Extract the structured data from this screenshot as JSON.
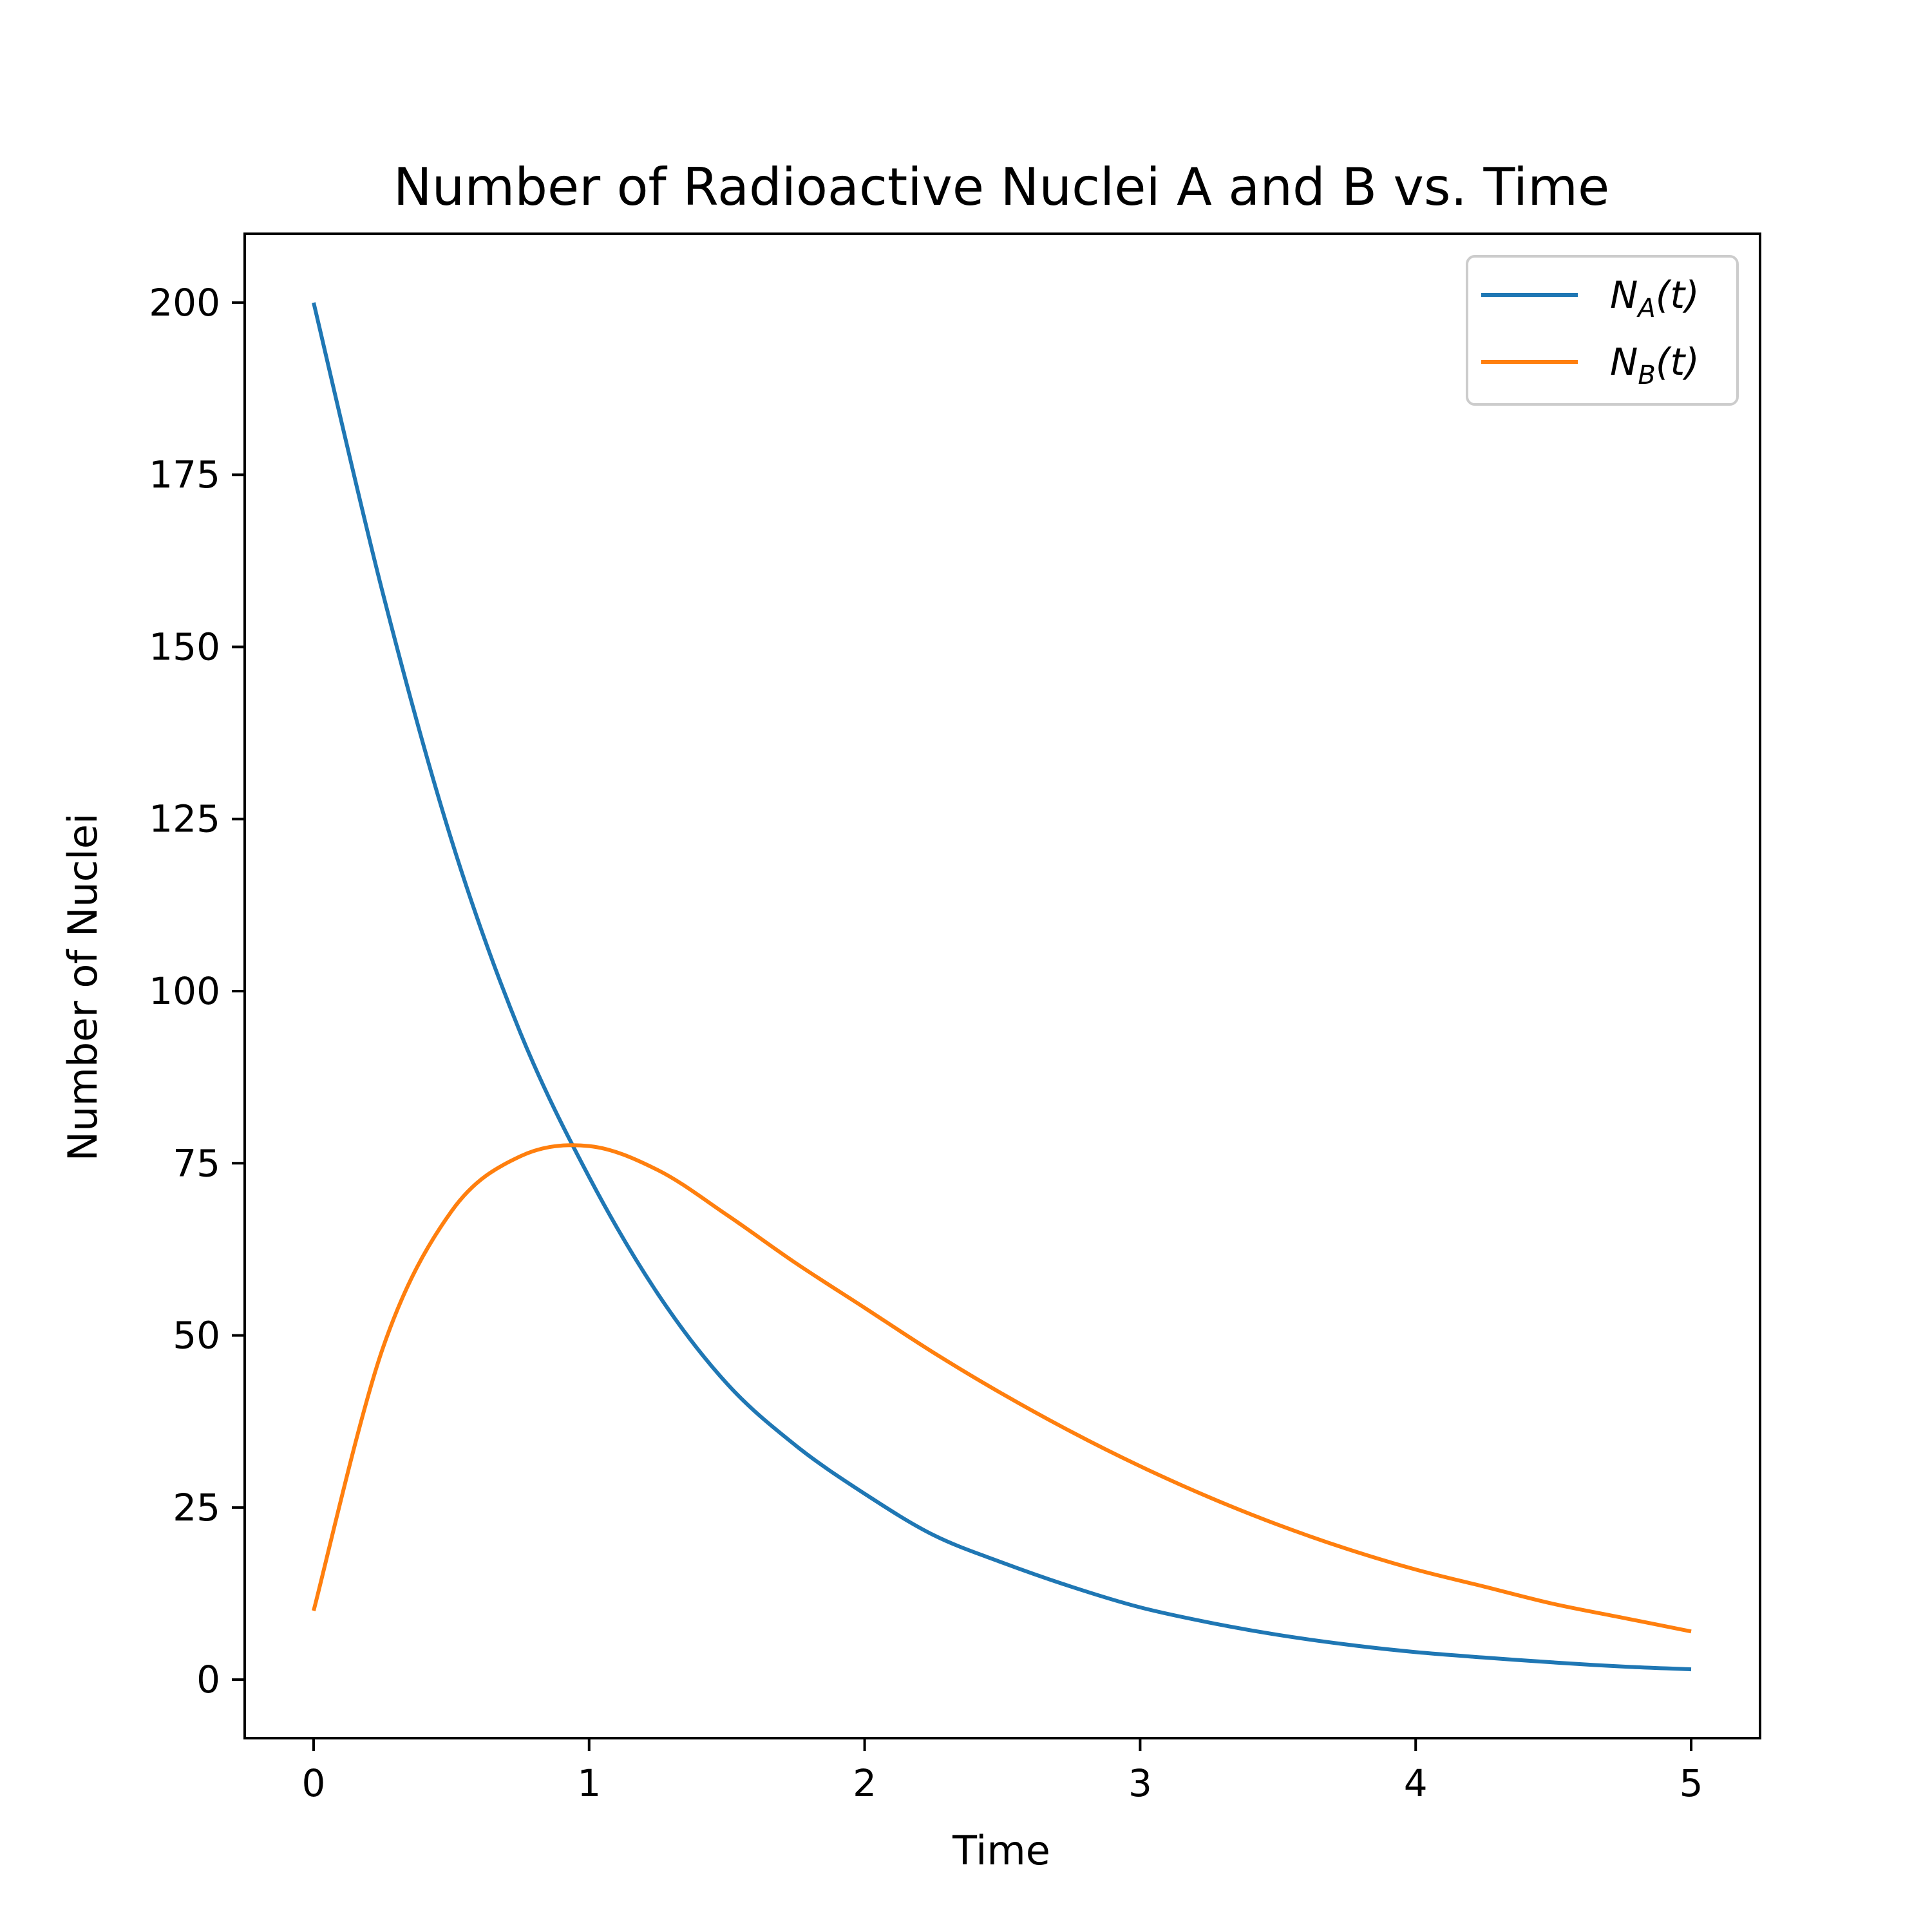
{
  "chart_data": {
    "type": "line",
    "title": "Number of Radioactive Nuclei A and B vs. Time",
    "xlabel": "Time",
    "ylabel": "Number of Nuclei",
    "xlim": [
      -0.25,
      5.25
    ],
    "ylim": [
      -8.5,
      210
    ],
    "xticks": [
      0,
      1,
      2,
      3,
      4,
      5
    ],
    "yticks": [
      0,
      25,
      50,
      75,
      100,
      125,
      150,
      175,
      200
    ],
    "grid": false,
    "legend_position": "top-right",
    "series": [
      {
        "name": "N_A(t)",
        "legend_main": "N",
        "legend_sub": "A",
        "legend_tail": "(t)",
        "color": "#1f77b4",
        "x": [
          0,
          0.25,
          0.5,
          0.75,
          1,
          1.25,
          1.5,
          1.75,
          2,
          2.25,
          2.5,
          2.75,
          3,
          3.25,
          3.5,
          3.75,
          4,
          4.25,
          4.5,
          4.75,
          5
        ],
        "y": [
          200,
          158,
          122,
          94,
          73,
          56,
          43,
          34,
          27,
          21,
          17,
          13.5,
          10.5,
          8.3,
          6.5,
          5.1,
          4.0,
          3.2,
          2.5,
          1.9,
          1.5
        ]
      },
      {
        "name": "N_B(t)",
        "legend_main": "N",
        "legend_sub": "B",
        "legend_tail": "(t)",
        "color": "#ff7f0e",
        "x": [
          0,
          0.25,
          0.5,
          0.75,
          1,
          1.25,
          1.5,
          1.75,
          2,
          2.25,
          2.5,
          2.75,
          3,
          3.25,
          3.5,
          3.75,
          4,
          4.25,
          4.5,
          4.75,
          5
        ],
        "y": [
          10,
          48,
          68,
          76,
          77.5,
          74,
          67.5,
          60.5,
          54,
          47.5,
          41.5,
          36,
          31,
          26.5,
          22.5,
          19,
          16,
          13.5,
          11,
          9,
          7
        ]
      }
    ]
  }
}
